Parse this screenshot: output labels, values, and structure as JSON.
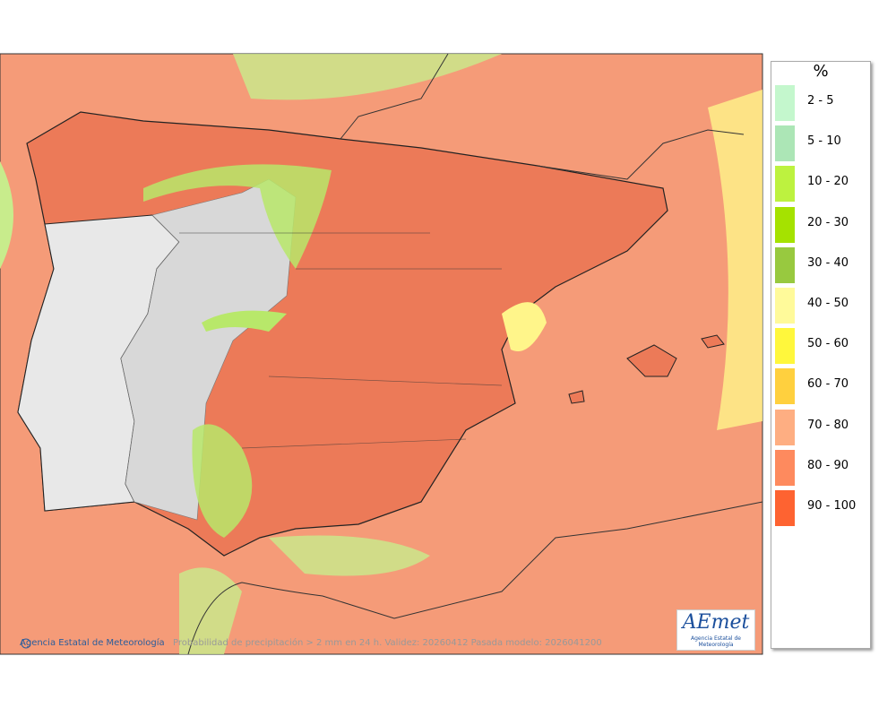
{
  "legend": {
    "title": "%",
    "items": [
      {
        "label": "2 - 5",
        "color": "#c4f7cd"
      },
      {
        "label": "5 - 10",
        "color": "#ace6b6"
      },
      {
        "label": "10 - 20",
        "color": "#bdf23f"
      },
      {
        "label": "20 - 30",
        "color": "#a5e200"
      },
      {
        "label": "30 - 40",
        "color": "#98c93f"
      },
      {
        "label": "40 - 50",
        "color": "#fffa9a"
      },
      {
        "label": "50 - 60",
        "color": "#fff73c"
      },
      {
        "label": "60 - 70",
        "color": "#ffd03e"
      },
      {
        "label": "70 - 80",
        "color": "#feae82"
      },
      {
        "label": "80 - 90",
        "color": "#fe8a5e"
      },
      {
        "label": "90 - 100",
        "color": "#fe6331"
      }
    ]
  },
  "footer": {
    "credit": "Agencia Estatal de Meteorología",
    "caption": "Probabilidad de precipitación > 2 mm en 24 h. Validez: 20260412 Pasada modelo: 2026041200"
  },
  "logo": {
    "name": "AEmet",
    "subtitle": "Agencia Estatal de Meteorología"
  }
}
